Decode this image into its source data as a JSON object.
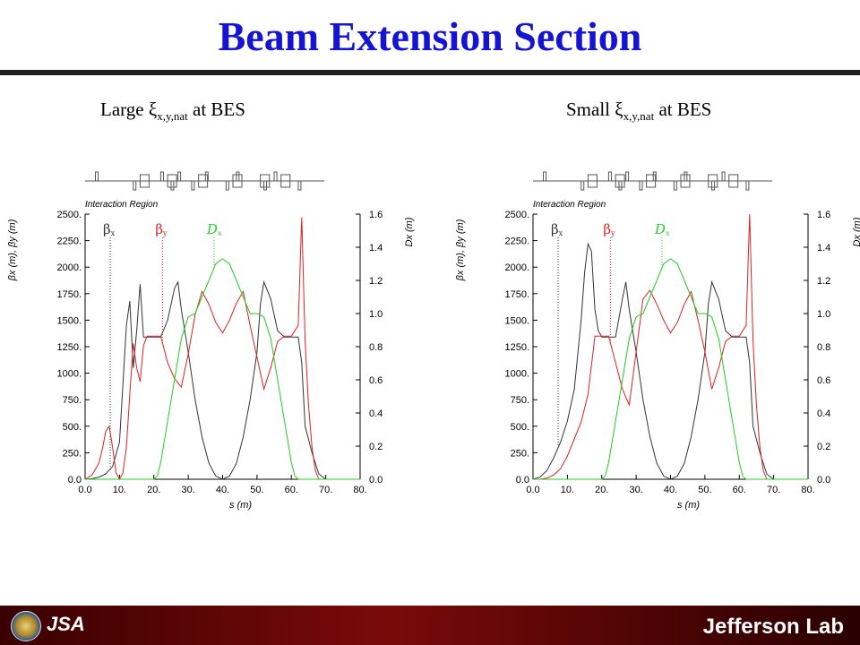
{
  "slide": {
    "title": "Beam Extension Section",
    "footer_logo_text": "JSA",
    "footer_lab_name": "Jefferson Lab"
  },
  "colors": {
    "title": "#1414d2",
    "beta_x": "#333333",
    "beta_y": "#e02020",
    "dispersion": "#20d020"
  },
  "chart_data": [
    {
      "type": "line",
      "subtitle_prefix": "Large ",
      "subtitle_symbol": "ξ",
      "subtitle_subscript": "x,y,nat",
      "subtitle_suffix": " at BES",
      "region_label": "Interaction Region",
      "xlabel": "s (m)",
      "ylabel": "βx (m), βy (m)",
      "y2label": "Dx (m)",
      "xlim": [
        0,
        80
      ],
      "ylim": [
        0,
        2500
      ],
      "y2lim": [
        0,
        1.6
      ],
      "x_ticks": [
        "0.0",
        "10.",
        "20.",
        "30.",
        "40.",
        "50.",
        "60.",
        "70.",
        "80."
      ],
      "y_ticks": [
        "0.0",
        "250.",
        "500.",
        "750.",
        "1000.",
        "1250.",
        "1500.",
        "1750.",
        "2000.",
        "2250.",
        "2500."
      ],
      "y2_ticks": [
        "0.0",
        "0.2",
        "0.4",
        "0.6",
        "0.8",
        "1.0",
        "1.2",
        "1.4",
        "1.6"
      ],
      "series": [
        {
          "name": "βx",
          "axis": "left",
          "x": [
            0,
            2,
            4,
            6,
            8,
            10,
            12,
            13,
            14,
            15,
            16,
            17,
            18,
            20,
            22,
            24,
            26,
            27,
            28,
            30,
            32,
            34,
            36,
            38,
            40,
            42,
            44,
            46,
            48,
            50,
            51,
            52,
            54,
            56,
            58,
            60,
            62,
            63,
            64,
            66,
            68,
            70
          ],
          "y": [
            0,
            5,
            20,
            50,
            120,
            350,
            1450,
            1680,
            1050,
            1400,
            1840,
            1340,
            1340,
            1340,
            1340,
            1500,
            1800,
            1860,
            1600,
            1200,
            750,
            400,
            150,
            30,
            0,
            30,
            150,
            400,
            750,
            1200,
            1650,
            1860,
            1700,
            1400,
            1340,
            1340,
            1340,
            1100,
            500,
            250,
            50,
            0
          ]
        },
        {
          "name": "βy",
          "axis": "left",
          "x": [
            0,
            2,
            4,
            5,
            6,
            7,
            8,
            9,
            10,
            11,
            12,
            13,
            14,
            15,
            16,
            17,
            18,
            20,
            22,
            24,
            26,
            28,
            30,
            32,
            34,
            36,
            38,
            40,
            42,
            44,
            46,
            48,
            50,
            52,
            54,
            56,
            58,
            60,
            62,
            63,
            64,
            65,
            66,
            67,
            68,
            70
          ],
          "y": [
            0,
            40,
            150,
            280,
            450,
            500,
            300,
            60,
            0,
            60,
            300,
            800,
            1280,
            1050,
            920,
            1260,
            1350,
            1350,
            1350,
            1100,
            950,
            870,
            1180,
            1550,
            1770,
            1650,
            1480,
            1380,
            1500,
            1660,
            1770,
            1450,
            1150,
            850,
            1050,
            1300,
            1350,
            1350,
            1450,
            2470,
            1300,
            700,
            300,
            80,
            0,
            0
          ]
        },
        {
          "name": "Dx",
          "axis": "right",
          "x": [
            0,
            20,
            21,
            22,
            24,
            26,
            28,
            30,
            32,
            34,
            36,
            38,
            40,
            42,
            44,
            46,
            48,
            50,
            52,
            54,
            56,
            58,
            60,
            61,
            62,
            80
          ],
          "y": [
            0,
            0,
            0.02,
            0.1,
            0.35,
            0.6,
            0.85,
            0.98,
            1.0,
            1.1,
            1.2,
            1.3,
            1.33,
            1.3,
            1.2,
            1.1,
            1.0,
            1.0,
            0.98,
            0.85,
            0.6,
            0.35,
            0.1,
            0.02,
            0,
            0
          ]
        }
      ],
      "marker_x": {
        "βx": 7.3,
        "βy": 22.5,
        "Dx": 37.5
      }
    },
    {
      "type": "line",
      "subtitle_prefix": "Small ",
      "subtitle_symbol": "ξ",
      "subtitle_subscript": "x,y,nat",
      "subtitle_suffix": " at BES",
      "region_label": "Interaction Region",
      "xlabel": "s (m)",
      "ylabel": "βx (m), βy (m)",
      "y2label": "Dx (m)",
      "xlim": [
        0,
        80
      ],
      "ylim": [
        0,
        2500
      ],
      "y2lim": [
        0,
        1.6
      ],
      "x_ticks": [
        "0.0",
        "10.",
        "20.",
        "30.",
        "40.",
        "50.",
        "60.",
        "70.",
        "80."
      ],
      "y_ticks": [
        "0.0",
        "250.",
        "500.",
        "750.",
        "1000.",
        "1250.",
        "1500.",
        "1750.",
        "2000.",
        "2250.",
        "2500."
      ],
      "y2_ticks": [
        "0.0",
        "0.2",
        "0.4",
        "0.6",
        "0.8",
        "1.0",
        "1.2",
        "1.4",
        "1.6"
      ],
      "series": [
        {
          "name": "βx",
          "axis": "left",
          "x": [
            0,
            2,
            4,
            6,
            8,
            10,
            12,
            14,
            15,
            16,
            17,
            18,
            19,
            20,
            22,
            24,
            26,
            27,
            28,
            30,
            32,
            34,
            36,
            38,
            40,
            42,
            44,
            46,
            48,
            50,
            51,
            52,
            54,
            56,
            58,
            60,
            62,
            63,
            64,
            66,
            68,
            70
          ],
          "y": [
            0,
            20,
            80,
            200,
            350,
            550,
            850,
            1500,
            1950,
            2220,
            2150,
            1600,
            1400,
            1340,
            1340,
            1340,
            1700,
            1860,
            1600,
            1200,
            750,
            400,
            150,
            30,
            0,
            30,
            150,
            400,
            750,
            1200,
            1650,
            1860,
            1700,
            1400,
            1340,
            1340,
            1340,
            1100,
            500,
            250,
            50,
            0
          ]
        },
        {
          "name": "βy",
          "axis": "left",
          "x": [
            0,
            2,
            4,
            6,
            8,
            10,
            12,
            14,
            16,
            18,
            20,
            22,
            24,
            26,
            28,
            30,
            32,
            34,
            36,
            38,
            40,
            42,
            44,
            46,
            48,
            50,
            52,
            54,
            56,
            58,
            60,
            62,
            63,
            64,
            65,
            66,
            67,
            68,
            70
          ],
          "y": [
            0,
            0,
            10,
            40,
            100,
            220,
            380,
            540,
            800,
            1350,
            1350,
            1350,
            1100,
            850,
            700,
            1200,
            1700,
            1780,
            1650,
            1500,
            1380,
            1480,
            1650,
            1770,
            1500,
            1200,
            850,
            1050,
            1300,
            1350,
            1350,
            1450,
            2500,
            1300,
            700,
            300,
            80,
            0,
            0
          ]
        },
        {
          "name": "Dx",
          "axis": "right",
          "x": [
            0,
            20,
            21,
            22,
            24,
            26,
            28,
            30,
            32,
            34,
            36,
            38,
            40,
            42,
            44,
            46,
            48,
            50,
            52,
            54,
            56,
            58,
            60,
            61,
            62,
            80
          ],
          "y": [
            0,
            0,
            0.02,
            0.1,
            0.35,
            0.6,
            0.85,
            0.98,
            1.0,
            1.1,
            1.2,
            1.3,
            1.33,
            1.3,
            1.2,
            1.1,
            1.0,
            1.0,
            0.98,
            0.85,
            0.6,
            0.35,
            0.1,
            0.02,
            0,
            0
          ]
        }
      ],
      "marker_x": {
        "βx": 7.3,
        "βy": 22.5,
        "Dx": 37.5
      }
    }
  ]
}
